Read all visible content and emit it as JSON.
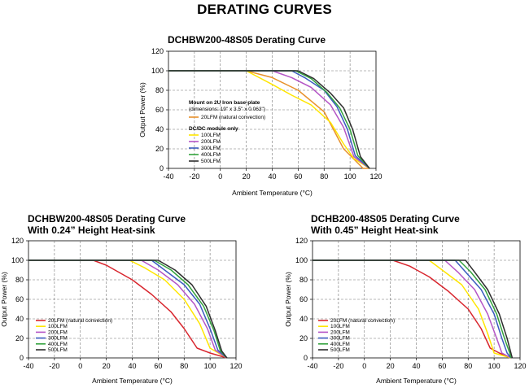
{
  "page_title": "DERATING CURVES",
  "chart_data": [
    {
      "type": "line",
      "title": "DCHBW200-48S05 Derating Curve",
      "xlabel": "Ambient Temperature (°C)",
      "ylabel": "Output Power (%)",
      "xlim": [
        -40,
        120
      ],
      "ylim": [
        0,
        120
      ],
      "xticks": [
        "-40",
        "-20",
        "0",
        "20",
        "40",
        "60",
        "80",
        "100",
        "120"
      ],
      "yticks": [
        "0",
        "20",
        "40",
        "60",
        "80",
        "100",
        "120"
      ],
      "grid": true,
      "legend_position": "center-left",
      "legend_groups": [
        {
          "heading": "Mount on 2U Iron base-plate",
          "subheading": "(dimensions: 19\" x 3.5\" x 0.063\")",
          "items": [
            "20LFM (natural convection)"
          ]
        },
        {
          "heading": "DC/DC module only",
          "subheading": "",
          "items": [
            "100LFM",
            "200LFM",
            "300LFM",
            "400LFM",
            "500LFM"
          ]
        }
      ],
      "series": [
        {
          "name": "20LFM (natural convection)",
          "color": "#e8912c",
          "x": [
            -40,
            20,
            40,
            60,
            80,
            95,
            110,
            115
          ],
          "y": [
            100,
            100,
            93,
            80,
            58,
            20,
            0,
            0
          ]
        },
        {
          "name": "100LFM",
          "color": "#ffe600",
          "x": [
            -40,
            20,
            40,
            55,
            70,
            85,
            95,
            103,
            115
          ],
          "y": [
            100,
            100,
            86,
            75,
            65,
            47,
            25,
            10,
            0
          ]
        },
        {
          "name": "200LFM",
          "color": "#b455c6",
          "x": [
            -40,
            40,
            55,
            70,
            85,
            95,
            103,
            115
          ],
          "y": [
            100,
            100,
            93,
            83,
            65,
            42,
            12,
            0
          ]
        },
        {
          "name": "300LFM",
          "color": "#3b5bc0",
          "x": [
            -40,
            55,
            65,
            80,
            90,
            98,
            104,
            115
          ],
          "y": [
            100,
            100,
            93,
            80,
            63,
            40,
            13,
            0
          ]
        },
        {
          "name": "400LFM",
          "color": "#34a33e",
          "x": [
            -40,
            58,
            70,
            82,
            92,
            100,
            106,
            115
          ],
          "y": [
            100,
            100,
            92,
            78,
            62,
            40,
            13,
            0
          ]
        },
        {
          "name": "500LFM",
          "color": "#2e2e2e",
          "x": [
            -40,
            60,
            72,
            85,
            95,
            102,
            108,
            115
          ],
          "y": [
            100,
            100,
            92,
            77,
            62,
            40,
            12,
            0
          ]
        }
      ]
    },
    {
      "type": "line",
      "title": "DCHBW200-48S05 Derating Curve With 0.24” Height Heat-sink",
      "title_lines": [
        "DCHBW200-48S05 Derating Curve",
        "With 0.24” Height Heat-sink"
      ],
      "xlabel": "Ambient Temperature (°C)",
      "ylabel": "Output Power (%)",
      "xlim": [
        -40,
        120
      ],
      "ylim": [
        0,
        120
      ],
      "xticks": [
        "-40",
        "-20",
        "0",
        "20",
        "40",
        "60",
        "80",
        "100",
        "120"
      ],
      "yticks": [
        "0",
        "20",
        "40",
        "60",
        "80",
        "100",
        "120"
      ],
      "grid": true,
      "legend_position": "bottom-left",
      "series": [
        {
          "name": "20LFM (natural convection)",
          "color": "#d8262e",
          "x": [
            -40,
            10,
            20,
            40,
            55,
            70,
            80,
            90,
            100,
            113
          ],
          "y": [
            100,
            100,
            95,
            80,
            65,
            47,
            30,
            10,
            5,
            0
          ]
        },
        {
          "name": "100LFM",
          "color": "#ffe600",
          "x": [
            -40,
            38,
            50,
            65,
            80,
            92,
            100,
            113
          ],
          "y": [
            100,
            100,
            92,
            80,
            60,
            35,
            10,
            0
          ]
        },
        {
          "name": "200LFM",
          "color": "#b455c6",
          "x": [
            -40,
            47,
            60,
            75,
            88,
            98,
            104,
            113
          ],
          "y": [
            100,
            100,
            90,
            75,
            55,
            30,
            8,
            0
          ]
        },
        {
          "name": "300LFM",
          "color": "#3b5bc0",
          "x": [
            -40,
            55,
            65,
            80,
            92,
            100,
            106,
            113
          ],
          "y": [
            100,
            100,
            90,
            75,
            55,
            30,
            8,
            0
          ]
        },
        {
          "name": "400LFM",
          "color": "#34a33e",
          "x": [
            -40,
            57,
            70,
            83,
            95,
            103,
            108,
            113
          ],
          "y": [
            100,
            100,
            90,
            75,
            53,
            28,
            7,
            0
          ]
        },
        {
          "name": "500LFM",
          "color": "#2e2e2e",
          "x": [
            -40,
            60,
            73,
            86,
            97,
            104,
            109,
            113
          ],
          "y": [
            100,
            100,
            90,
            75,
            53,
            28,
            7,
            0
          ]
        }
      ]
    },
    {
      "type": "line",
      "title": "DCHB200-48S05 Derating Curve With 0.45” Height Heat-sink",
      "title_lines": [
        "DCHB200-48S05 Derating Curve",
        "With 0.45” Height Heat-sink"
      ],
      "xlabel": "Ambient Temperature (°C)",
      "ylabel": "Output Power (%)",
      "xlim": [
        -40,
        120
      ],
      "ylim": [
        0,
        120
      ],
      "xticks": [
        "-40",
        "-20",
        "0",
        "20",
        "40",
        "60",
        "80",
        "100",
        "120"
      ],
      "yticks": [
        "0",
        "20",
        "40",
        "60",
        "80",
        "100",
        "120"
      ],
      "grid": true,
      "legend_position": "bottom-left",
      "series": [
        {
          "name": "20LFM (natural convection)",
          "color": "#d8262e",
          "x": [
            -40,
            22,
            35,
            50,
            65,
            80,
            90,
            97,
            104,
            113
          ],
          "y": [
            100,
            100,
            94,
            83,
            68,
            50,
            30,
            10,
            5,
            0
          ]
        },
        {
          "name": "100LFM",
          "color": "#ffe600",
          "x": [
            -40,
            50,
            60,
            75,
            88,
            95,
            100,
            113
          ],
          "y": [
            100,
            100,
            90,
            75,
            50,
            25,
            5,
            0
          ]
        },
        {
          "name": "200LFM",
          "color": "#b455c6",
          "x": [
            -40,
            62,
            72,
            85,
            95,
            102,
            106,
            113
          ],
          "y": [
            100,
            100,
            88,
            70,
            45,
            20,
            5,
            0
          ]
        },
        {
          "name": "300LFM",
          "color": "#3b5bc0",
          "x": [
            -40,
            70,
            78,
            90,
            100,
            106,
            110,
            113
          ],
          "y": [
            100,
            100,
            88,
            70,
            45,
            20,
            5,
            0
          ]
        },
        {
          "name": "400LFM",
          "color": "#34a33e",
          "x": [
            -40,
            73,
            82,
            93,
            102,
            108,
            112,
            113
          ],
          "y": [
            100,
            100,
            88,
            70,
            45,
            20,
            5,
            0
          ]
        },
        {
          "name": "500LFM",
          "color": "#2e2e2e",
          "x": [
            -40,
            78,
            85,
            95,
            104,
            110,
            113,
            114
          ],
          "y": [
            100,
            100,
            88,
            70,
            45,
            20,
            5,
            0
          ]
        }
      ]
    }
  ]
}
